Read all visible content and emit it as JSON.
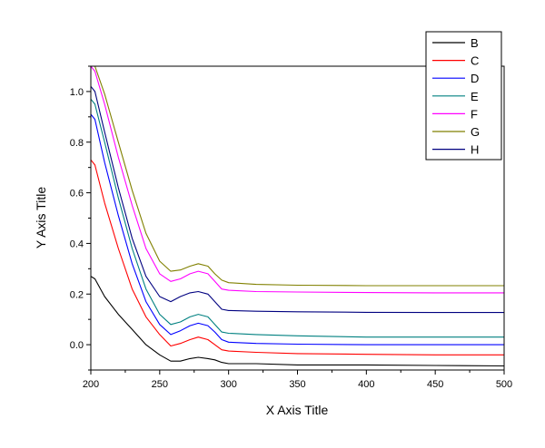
{
  "chart_data": {
    "type": "line",
    "title": "",
    "xlabel": "X Axis Title",
    "ylabel": "Y Axis Title",
    "xlim": [
      200,
      500
    ],
    "ylim": [
      -0.1,
      1.1
    ],
    "xticks": [
      200,
      250,
      300,
      350,
      400,
      450,
      500
    ],
    "xtick_labels": [
      "200",
      "250",
      "300",
      "350",
      "400",
      "450",
      "500"
    ],
    "yticks": [
      0.0,
      0.2,
      0.4,
      0.6,
      0.8,
      1.0
    ],
    "ytick_labels": [
      "0.0",
      "0.2",
      "0.4",
      "0.6",
      "0.8",
      "1.0"
    ],
    "grid": false,
    "legend_position": "top-right",
    "x": [
      200,
      203,
      210,
      220,
      230,
      240,
      250,
      258,
      265,
      272,
      278,
      285,
      290,
      295,
      300,
      320,
      350,
      400,
      450,
      500
    ],
    "series": [
      {
        "name": "B",
        "color": "#000000",
        "values": [
          0.27,
          0.26,
          0.19,
          0.12,
          0.06,
          0.0,
          -0.04,
          -0.065,
          -0.065,
          -0.055,
          -0.05,
          -0.055,
          -0.06,
          -0.07,
          -0.075,
          -0.075,
          -0.08,
          -0.08,
          -0.082,
          -0.084
        ]
      },
      {
        "name": "C",
        "color": "#ff0000",
        "values": [
          0.73,
          0.71,
          0.56,
          0.38,
          0.22,
          0.11,
          0.04,
          -0.005,
          0.005,
          0.02,
          0.03,
          0.02,
          0.0,
          -0.02,
          -0.025,
          -0.03,
          -0.035,
          -0.038,
          -0.04,
          -0.04
        ]
      },
      {
        "name": "D",
        "color": "#0000ff",
        "values": [
          0.91,
          0.89,
          0.72,
          0.51,
          0.32,
          0.17,
          0.08,
          0.04,
          0.055,
          0.075,
          0.085,
          0.075,
          0.05,
          0.02,
          0.01,
          0.005,
          0.002,
          0.0,
          0.0,
          0.0
        ]
      },
      {
        "name": "E",
        "color": "#008080",
        "values": [
          0.97,
          0.95,
          0.8,
          0.58,
          0.38,
          0.22,
          0.12,
          0.08,
          0.09,
          0.11,
          0.12,
          0.11,
          0.08,
          0.05,
          0.045,
          0.04,
          0.035,
          0.03,
          0.03,
          0.03
        ]
      },
      {
        "name": "F",
        "color": "#ff00ff",
        "values": [
          1.1,
          1.08,
          0.95,
          0.74,
          0.55,
          0.38,
          0.28,
          0.25,
          0.26,
          0.28,
          0.29,
          0.28,
          0.25,
          0.22,
          0.215,
          0.21,
          0.208,
          0.206,
          0.205,
          0.205
        ]
      },
      {
        "name": "G",
        "color": "#808000",
        "values": [
          1.1,
          1.1,
          0.99,
          0.8,
          0.61,
          0.44,
          0.33,
          0.29,
          0.295,
          0.31,
          0.32,
          0.31,
          0.28,
          0.255,
          0.245,
          0.238,
          0.235,
          0.233,
          0.233,
          0.233
        ]
      },
      {
        "name": "H",
        "color": "#000080",
        "values": [
          1.02,
          1.0,
          0.84,
          0.62,
          0.42,
          0.27,
          0.19,
          0.17,
          0.19,
          0.205,
          0.21,
          0.2,
          0.17,
          0.14,
          0.135,
          0.132,
          0.13,
          0.128,
          0.127,
          0.127
        ]
      }
    ]
  }
}
